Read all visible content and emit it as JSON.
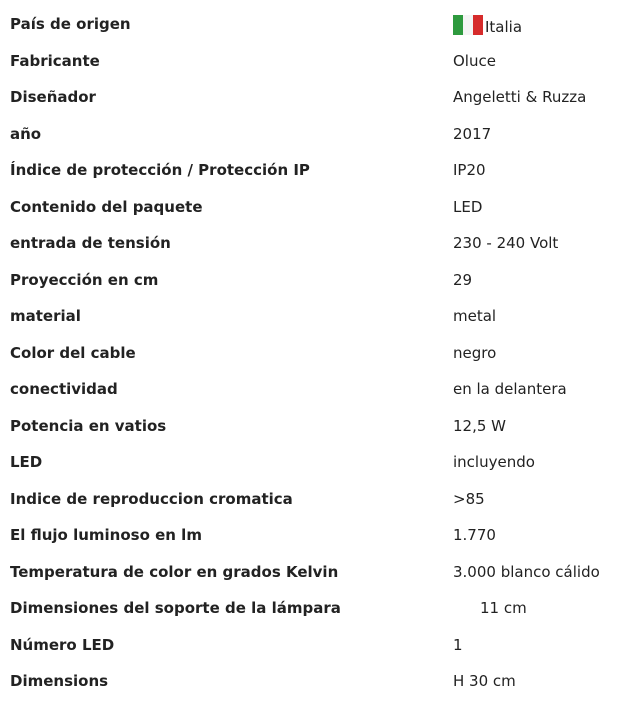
{
  "table": {
    "rows": [
      [
        "País de origen",
        "Italia"
      ],
      [
        "Fabricante",
        "Oluce"
      ],
      [
        "Diseñador",
        "Angeletti & Ruzza"
      ],
      [
        "año",
        "2017"
      ],
      [
        "Índice de protección / Protección IP",
        "IP20"
      ],
      [
        "Contenido del paquete",
        "LED"
      ],
      [
        "entrada de tensión",
        "230 - 240 Volt"
      ],
      [
        "Proyección en cm",
        "29"
      ],
      [
        "material",
        "metal"
      ],
      [
        "Color del cable",
        "negro"
      ],
      [
        "conectividad",
        "en la delantera"
      ],
      [
        "Potencia en vatios",
        "12,5 W"
      ],
      [
        "LED",
        "incluyendo"
      ],
      [
        "Indice de reproduccion cromatica",
        ">85"
      ],
      [
        "El flujo luminoso en lm",
        "1.770"
      ],
      [
        "Temperatura de color en grados Kelvin",
        "3.000 blanco cálido"
      ],
      [
        "Dimensiones del soporte de la lámpara",
        "11 cm"
      ],
      [
        "Número LED",
        "1"
      ],
      [
        "Dimensions",
        "H 30 cm"
      ]
    ]
  }
}
